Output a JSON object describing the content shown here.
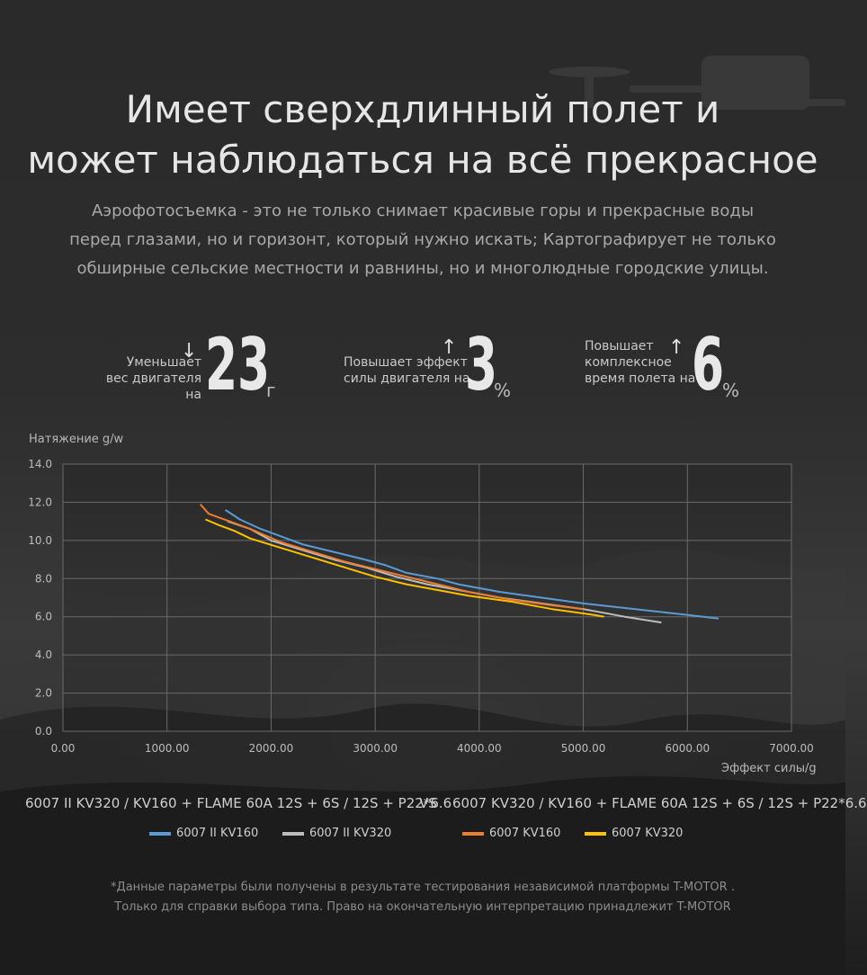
{
  "header": {
    "title_lines": [
      "Имеет сверхдлинный полет и",
      "может наблюдаться на всё прекрасное"
    ],
    "intro_lines": [
      "Аэрофотосъемка  - это не только снимает красивые горы и прекрасные воды",
      "перед глазами, но и горизонт, который нужно искать; Картографирует не только",
      "обширные сельские местности и равнины, но и многолюдные городские улицы."
    ]
  },
  "stats": [
    {
      "label_lines": [
        "Уменьшает",
        "вес двигателя  на"
      ],
      "arrow": "↓",
      "value": "23",
      "unit": "г"
    },
    {
      "label_lines": [
        "Повышает эффект",
        "силы двигателя на"
      ],
      "arrow": "↑",
      "value": "3",
      "unit": "%"
    },
    {
      "label_lines": [
        "Повышает",
        "комплексное",
        "время полета на"
      ],
      "arrow": "↑",
      "value": "6",
      "unit": "%"
    }
  ],
  "comparison": {
    "left": "6007 II KV320 / KV160 + FLAME 60A 12S + 6S / 12S + P22*6.6",
    "vs": "VS",
    "right": "6007 KV320 / KV160 + FLAME 60A 12S + 6S / 12S + P22*6.6"
  },
  "footnote_lines": [
    "*Данные параметры были получены в результате тестирования независимой платформы T-MOTOR .",
    "Только для справки выбора типа. Право на окончательную интерпретацию принадлежит T-MOTOR"
  ],
  "chart_data": {
    "type": "line",
    "ylabel": "Натяжение g/w",
    "xlabel": "Эффект силы/g",
    "xlim": [
      0,
      7000
    ],
    "ylim": [
      0,
      14
    ],
    "x_ticks": [
      "0.00",
      "1000.00",
      "2000.00",
      "3000.00",
      "4000.00",
      "5000.00",
      "6000.00",
      "7000.00"
    ],
    "y_ticks": [
      "0.0",
      "2.0",
      "4.0",
      "6.0",
      "8.0",
      "10.0",
      "12.0",
      "14.0"
    ],
    "grid": true,
    "legend_position": "bottom",
    "series": [
      {
        "name": "6007 II KV160",
        "color": "#5b9bd5",
        "x": [
          1560,
          1700,
          1900,
          2100,
          2300,
          2600,
          2900,
          3100,
          3300,
          3600,
          3800,
          4200,
          4600,
          5000,
          5500,
          6000,
          6300
        ],
        "y": [
          11.6,
          11.1,
          10.6,
          10.2,
          9.8,
          9.4,
          9.0,
          8.7,
          8.3,
          8.0,
          7.7,
          7.3,
          7.0,
          6.7,
          6.4,
          6.1,
          5.9
        ]
      },
      {
        "name": "6007 II KV320",
        "color": "#bdbdbd",
        "x": [
          1580,
          1800,
          2000,
          2300,
          2600,
          2900,
          3200,
          3500,
          3800,
          4200,
          4600,
          5000,
          5400,
          5750
        ],
        "y": [
          11.0,
          10.6,
          10.0,
          9.5,
          9.0,
          8.6,
          8.1,
          7.7,
          7.4,
          7.0,
          6.7,
          6.4,
          6.0,
          5.7
        ]
      },
      {
        "name": "6007 KV160",
        "color": "#ed7d31",
        "x": [
          1320,
          1400,
          1600,
          1800,
          2100,
          2400,
          2700,
          3000,
          3300,
          3600,
          3900,
          4300,
          4700,
          5000
        ],
        "y": [
          11.9,
          11.4,
          11.0,
          10.6,
          9.9,
          9.4,
          8.9,
          8.5,
          8.1,
          7.7,
          7.3,
          6.9,
          6.6,
          6.4
        ]
      },
      {
        "name": "6007 KV320",
        "color": "#ffc000",
        "x": [
          1370,
          1500,
          1650,
          1800,
          2100,
          2400,
          2700,
          3000,
          3300,
          3600,
          3900,
          4300,
          4700,
          5100,
          5200
        ],
        "y": [
          11.1,
          10.8,
          10.5,
          10.1,
          9.6,
          9.1,
          8.6,
          8.1,
          7.7,
          7.4,
          7.1,
          6.8,
          6.4,
          6.1,
          6.0
        ]
      }
    ]
  }
}
